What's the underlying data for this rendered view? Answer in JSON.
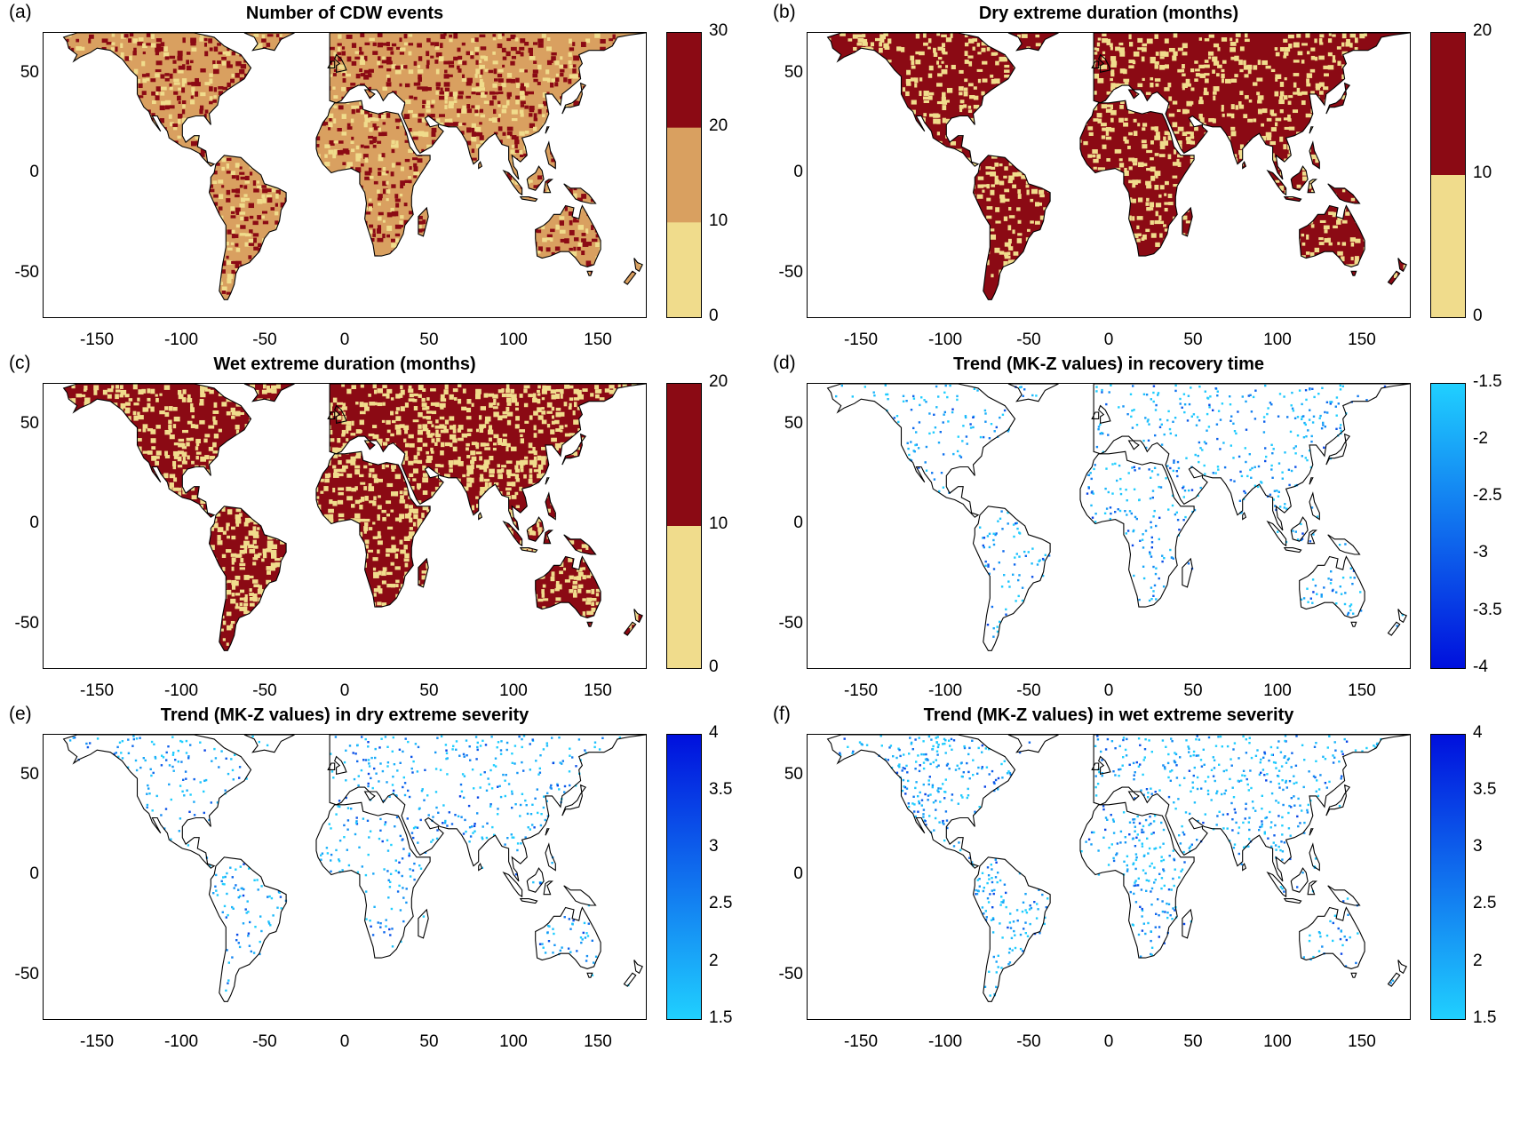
{
  "colors": {
    "light": "#F0DC8C",
    "medium": "#D9A060",
    "dark": "#8B0A14",
    "blue_light": "#20D0FF",
    "blue_dark": "#0010DD",
    "coast": "#000000"
  },
  "axes": {
    "x_ticks": [
      "-150",
      "-100",
      "-50",
      "0",
      "50",
      "100",
      "150"
    ],
    "y_ticks": [
      "50",
      "0",
      "-50"
    ]
  },
  "panels": [
    {
      "letter": "(a)",
      "title": "Number of CDW events",
      "type": "categorical",
      "colorbar": {
        "ticks": [
          "30",
          "20",
          "10",
          "0"
        ],
        "classes": [
          "dark",
          "medium",
          "light"
        ]
      }
    },
    {
      "letter": "(b)",
      "title": "Dry extreme duration (months)",
      "type": "categorical",
      "colorbar": {
        "ticks": [
          "20",
          "10",
          "0"
        ],
        "classes": [
          "dark",
          "light"
        ]
      }
    },
    {
      "letter": "(c)",
      "title": "Wet extreme duration (months)",
      "type": "categorical",
      "colorbar": {
        "ticks": [
          "20",
          "10",
          "0"
        ],
        "classes": [
          "dark",
          "light"
        ]
      }
    },
    {
      "letter": "(d)",
      "title": "Trend (MK-Z values) in recovery time",
      "type": "trend",
      "colorbar": {
        "ticks": [
          "-1.5",
          "-2",
          "-2.5",
          "-3",
          "-3.5",
          "-4"
        ],
        "top_color": "blue_light",
        "bottom_color": "blue_dark"
      }
    },
    {
      "letter": "(e)",
      "title": "Trend (MK-Z values) in dry extreme severity",
      "type": "trend",
      "colorbar": {
        "ticks": [
          "4",
          "3.5",
          "3",
          "2.5",
          "2",
          "1.5"
        ],
        "top_color": "blue_dark",
        "bottom_color": "blue_light"
      }
    },
    {
      "letter": "(f)",
      "title": "Trend (MK-Z values) in wet extreme severity",
      "type": "trend",
      "colorbar": {
        "ticks": [
          "4",
          "3.5",
          "3",
          "2.5",
          "2",
          "1.5"
        ],
        "top_color": "blue_dark",
        "bottom_color": "blue_light"
      }
    }
  ]
}
